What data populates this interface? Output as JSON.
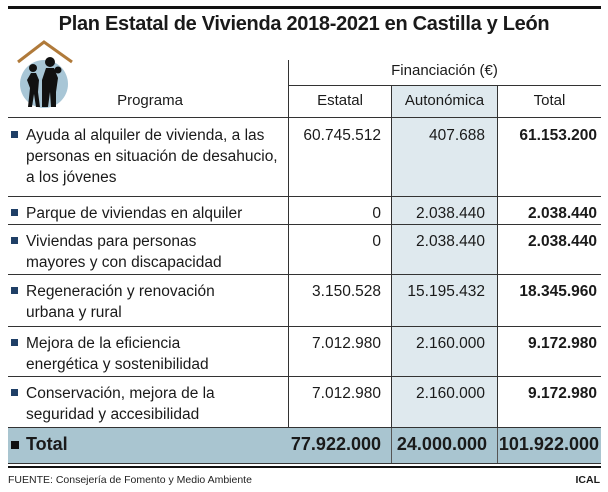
{
  "title": "Plan Estatal de Vivienda 2018-2021 en Castilla y León",
  "header": {
    "financing": "Financiación (€)",
    "program": "Programa",
    "estatal": "Estatal",
    "autonomica": "Autonómica",
    "total": "Total"
  },
  "rows": [
    {
      "programa": "Ayuda al alquiler de vivienda, a las personas en situación de desahucio, a los jóvenes",
      "estatal": "60.745.512",
      "autonomica": "407.688",
      "total": "61.153.200"
    },
    {
      "programa": "Parque de viviendas en alquiler",
      "estatal": "0",
      "autonomica": "2.038.440",
      "total": "2.038.440"
    },
    {
      "programa": "Viviendas para personas mayores y con discapacidad",
      "estatal": "0",
      "autonomica": "2.038.440",
      "total": "2.038.440"
    },
    {
      "programa": "Regeneración y renovación urbana y rural",
      "estatal": "3.150.528",
      "autonomica": "15.195.432",
      "total": "18.345.960"
    },
    {
      "programa": "Mejora de la eficiencia energética y sostenibilidad",
      "estatal": "7.012.980",
      "autonomica": "2.160.000",
      "total": "9.172.980"
    },
    {
      "programa": "Conservación, mejora de la seguridad y accesibilidad",
      "estatal": "7.012.980",
      "autonomica": "2.160.000",
      "total": "9.172.980"
    }
  ],
  "total": {
    "label": "Total",
    "estatal": "77.922.000",
    "autonomica": "24.000.000",
    "total": "101.922.000"
  },
  "footer": {
    "source": "FUENTE: Consejería de Fomento y Medio Ambiente",
    "credit": "ICAL"
  },
  "colors": {
    "autonomica_bg": "#dfe9ee",
    "total_bg": "#a9c5d0",
    "bullet": "#1f3f66",
    "roof": "#b07a3a"
  }
}
